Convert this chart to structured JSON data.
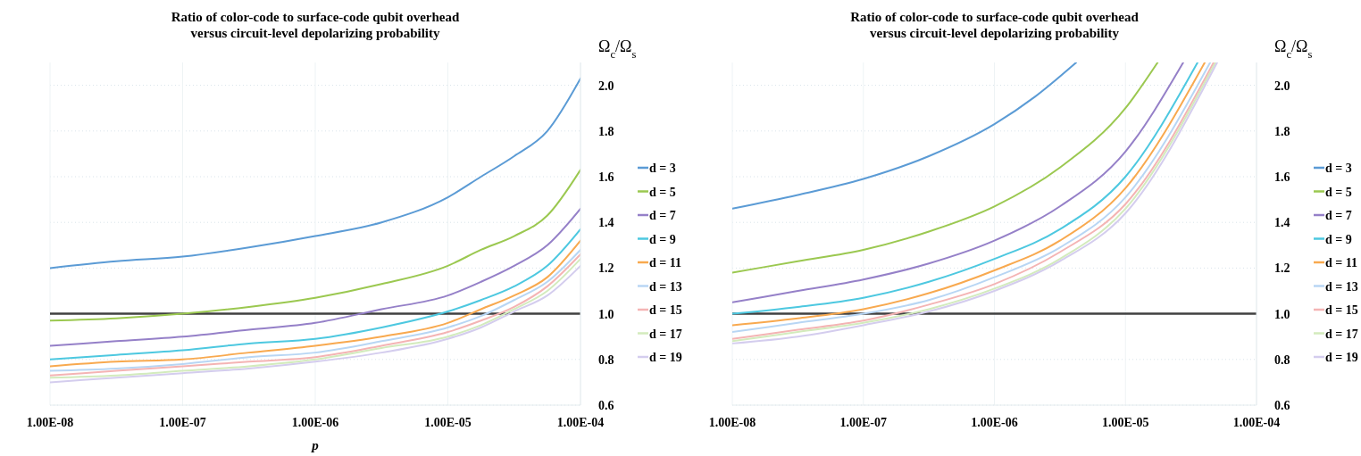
{
  "chart_data": [
    {
      "type": "line",
      "title": "Ratio of color-code to surface-code qubit overhead\nversus circuit-level depolarizing probability",
      "xlabel": "p",
      "ylabel": "Ω$_{c}$/Ω$_{s}$",
      "log": "x",
      "grid": true,
      "legend": "right",
      "marker": "none",
      "line_style": "solid",
      "x": [
        1e-08,
        3.162e-08,
        1e-07,
        3.162e-07,
        1e-06,
        3.162e-06,
        1e-05,
        1.778e-05,
        3.162e-05,
        5.623e-05,
        0.0001
      ],
      "xlim": [
        1e-08,
        0.0001
      ],
      "xticks": [
        {
          "value": 1e-08,
          "label": "1.00E-08"
        },
        {
          "value": 1e-07,
          "label": "1.00E-07"
        },
        {
          "value": 1e-06,
          "label": "1.00E-06"
        },
        {
          "value": 1e-05,
          "label": "1.00E-05"
        },
        {
          "value": 0.0001,
          "label": "1.00E-04"
        }
      ],
      "ylim": [
        0.6,
        2.1
      ],
      "yticks": [
        {
          "value": 0.6,
          "label": "0.6"
        },
        {
          "value": 0.8,
          "label": "0.8"
        },
        {
          "value": 1.0,
          "label": "1.0"
        },
        {
          "value": 1.2,
          "label": "1.2"
        },
        {
          "value": 1.4,
          "label": "1.4"
        },
        {
          "value": 1.6,
          "label": "1.6"
        },
        {
          "value": 1.8,
          "label": "1.8"
        },
        {
          "value": 2.0,
          "label": "2.0"
        }
      ],
      "ref_lines": [
        {
          "axis": "y",
          "value": 1.0,
          "color": "#404040"
        }
      ],
      "series": [
        {
          "name": "d = 3",
          "color": "#5b9bd5",
          "values": [
            1.2,
            1.23,
            1.25,
            1.29,
            1.34,
            1.4,
            1.51,
            1.6,
            1.69,
            1.8,
            2.03
          ]
        },
        {
          "name": "d = 5",
          "color": "#9bc850",
          "values": [
            0.97,
            0.98,
            1.0,
            1.03,
            1.07,
            1.13,
            1.21,
            1.28,
            1.34,
            1.43,
            1.63
          ]
        },
        {
          "name": "d = 7",
          "color": "#9580c8",
          "values": [
            0.86,
            0.88,
            0.9,
            0.93,
            0.96,
            1.02,
            1.08,
            1.14,
            1.21,
            1.3,
            1.46
          ]
        },
        {
          "name": "d = 9",
          "color": "#4dc8e0",
          "values": [
            0.8,
            0.82,
            0.84,
            0.87,
            0.89,
            0.94,
            1.01,
            1.06,
            1.12,
            1.21,
            1.37
          ]
        },
        {
          "name": "d = 11",
          "color": "#f8a94f",
          "values": [
            0.77,
            0.79,
            0.8,
            0.83,
            0.86,
            0.9,
            0.96,
            1.02,
            1.08,
            1.16,
            1.32
          ]
        },
        {
          "name": "d = 13",
          "color": "#b8d6f4",
          "values": [
            0.75,
            0.76,
            0.78,
            0.81,
            0.83,
            0.88,
            0.94,
            0.99,
            1.06,
            1.14,
            1.28
          ]
        },
        {
          "name": "d = 15",
          "color": "#f4b4b4",
          "values": [
            0.73,
            0.75,
            0.77,
            0.79,
            0.81,
            0.86,
            0.92,
            0.97,
            1.03,
            1.12,
            1.26
          ]
        },
        {
          "name": "d = 17",
          "color": "#d3ebbd",
          "values": [
            0.72,
            0.73,
            0.75,
            0.77,
            0.8,
            0.85,
            0.9,
            0.95,
            1.02,
            1.1,
            1.24
          ]
        },
        {
          "name": "d = 19",
          "color": "#d4cdee",
          "values": [
            0.7,
            0.72,
            0.74,
            0.76,
            0.79,
            0.83,
            0.89,
            0.94,
            1.01,
            1.08,
            1.21
          ]
        }
      ]
    },
    {
      "type": "line",
      "title": "Ratio of color-code to surface-code qubit overhead\nversus circuit-level depolarizing probability",
      "ylabel": "Ω$_{c}$/Ω$_{s}$",
      "log": "x",
      "grid": true,
      "legend": "right",
      "marker": "none",
      "line_style": "solid",
      "xlim": [
        1e-08,
        0.0001
      ],
      "xticks": [
        {
          "value": 1e-08,
          "label": "1.00E-08"
        },
        {
          "value": 1e-07,
          "label": "1.00E-07"
        },
        {
          "value": 1e-06,
          "label": "1.00E-06"
        },
        {
          "value": 1e-05,
          "label": "1.00E-05"
        },
        {
          "value": 0.0001,
          "label": "1.00E-04"
        }
      ],
      "ylim": [
        0.6,
        2.1
      ],
      "yticks": [
        {
          "value": 0.6,
          "label": "0.6"
        },
        {
          "value": 0.8,
          "label": "0.8"
        },
        {
          "value": 1.0,
          "label": "1.0"
        },
        {
          "value": 1.2,
          "label": "1.2"
        },
        {
          "value": 1.4,
          "label": "1.4"
        },
        {
          "value": 1.6,
          "label": "1.6"
        },
        {
          "value": 1.8,
          "label": "1.8"
        },
        {
          "value": 2.0,
          "label": "2.0"
        }
      ],
      "ref_lines": [
        {
          "axis": "y",
          "value": 1.0,
          "color": "#404040"
        }
      ],
      "series": [
        {
          "name": "d = 3",
          "color": "#5b9bd5",
          "x": [
            1e-08,
            3.162e-08,
            1e-07,
            3.162e-07,
            1e-06,
            2.04e-06,
            4.21e-06
          ],
          "values": [
            1.46,
            1.52,
            1.59,
            1.69,
            1.83,
            1.95,
            2.1
          ]
        },
        {
          "name": "d = 5",
          "color": "#9bc850",
          "x": [
            1e-08,
            3.162e-08,
            1e-07,
            3.162e-07,
            1e-06,
            3.162e-06,
            1e-05,
            1.76e-05
          ],
          "values": [
            1.18,
            1.23,
            1.28,
            1.36,
            1.47,
            1.64,
            1.9,
            2.1
          ]
        },
        {
          "name": "d = 7",
          "color": "#9580c8",
          "x": [
            1e-08,
            3.162e-08,
            1e-07,
            3.162e-07,
            1e-06,
            3.162e-06,
            1e-05,
            2.76e-05
          ],
          "values": [
            1.05,
            1.1,
            1.15,
            1.22,
            1.32,
            1.47,
            1.71,
            2.1
          ]
        },
        {
          "name": "d = 9",
          "color": "#4dc8e0",
          "x": [
            1e-08,
            3.162e-08,
            1e-07,
            3.162e-07,
            1e-06,
            3.162e-06,
            1e-05,
            3.55e-05
          ],
          "values": [
            1.0,
            1.03,
            1.07,
            1.14,
            1.24,
            1.37,
            1.6,
            2.1
          ]
        },
        {
          "name": "d = 11",
          "color": "#f8a94f",
          "x": [
            1e-08,
            3.162e-08,
            1e-07,
            3.162e-07,
            1e-06,
            3.162e-06,
            1e-05,
            4.03e-05
          ],
          "values": [
            0.95,
            0.98,
            1.02,
            1.09,
            1.19,
            1.32,
            1.55,
            2.1
          ]
        },
        {
          "name": "d = 13",
          "color": "#b8d6f4",
          "x": [
            1e-08,
            3.162e-08,
            1e-07,
            3.162e-07,
            1e-06,
            3.162e-06,
            1e-05,
            4.43e-05
          ],
          "values": [
            0.92,
            0.96,
            1.0,
            1.06,
            1.16,
            1.29,
            1.51,
            2.1
          ]
        },
        {
          "name": "d = 15",
          "color": "#f4b4b4",
          "x": [
            1e-08,
            3.162e-08,
            1e-07,
            3.162e-07,
            1e-06,
            3.162e-06,
            1e-05,
            4.71e-05
          ],
          "values": [
            0.89,
            0.93,
            0.97,
            1.04,
            1.13,
            1.27,
            1.48,
            2.1
          ]
        },
        {
          "name": "d = 17",
          "color": "#d3ebbd",
          "x": [
            1e-08,
            3.162e-08,
            1e-07,
            3.162e-07,
            1e-06,
            3.162e-06,
            1e-05,
            4.86e-05
          ],
          "values": [
            0.88,
            0.92,
            0.96,
            1.02,
            1.11,
            1.24,
            1.46,
            2.1
          ]
        },
        {
          "name": "d = 19",
          "color": "#d4cdee",
          "x": [
            1e-08,
            3.162e-08,
            1e-07,
            3.162e-07,
            1e-06,
            3.162e-06,
            1e-05,
            5.01e-05
          ],
          "values": [
            0.87,
            0.9,
            0.95,
            1.01,
            1.1,
            1.23,
            1.44,
            2.1
          ]
        }
      ]
    }
  ]
}
